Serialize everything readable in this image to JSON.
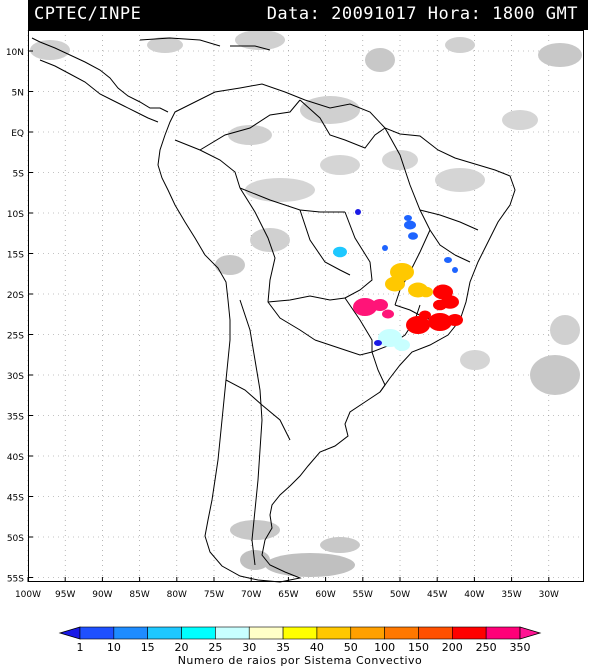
{
  "header": {
    "left": "CPTEC/INPE",
    "right": "Data: 20091017 Hora: 1800 GMT"
  },
  "map": {
    "lat_labels": [
      "10N",
      "5N",
      "EQ",
      "5S",
      "10S",
      "15S",
      "20S",
      "25S",
      "30S",
      "35S",
      "40S",
      "45S",
      "50S",
      "55S"
    ],
    "lon_labels": [
      "100W",
      "95W",
      "90W",
      "85W",
      "80W",
      "75W",
      "70W",
      "65W",
      "60W",
      "55W",
      "50W",
      "45W",
      "40W",
      "35W",
      "30W"
    ],
    "land_outline_color": "#000000",
    "cloud_color": "#c8c8c8",
    "grid_color": "#888888"
  },
  "colorbar": {
    "ticks": [
      "1",
      "10",
      "15",
      "20",
      "25",
      "30",
      "35",
      "40",
      "50",
      "100",
      "150",
      "200",
      "250",
      "350"
    ],
    "colors": [
      "#1a1ae6",
      "#1e50ff",
      "#1e8cff",
      "#1ec8ff",
      "#00ffff",
      "#c8ffff",
      "#ffffc8",
      "#ffff00",
      "#ffc800",
      "#ffa000",
      "#ff7800",
      "#ff5000",
      "#ff0000",
      "#ff0078",
      "#ff1493"
    ],
    "title": "Numero de raios por Sistema Convectivo"
  },
  "storm_colors": {
    "dark_blue": "#1a1ae6",
    "blue": "#1e64ff",
    "cyan": "#1ec8ff",
    "light_cyan": "#c8ffff",
    "yellow": "#ffc800",
    "magenta": "#ff1478",
    "red": "#ff0000"
  }
}
